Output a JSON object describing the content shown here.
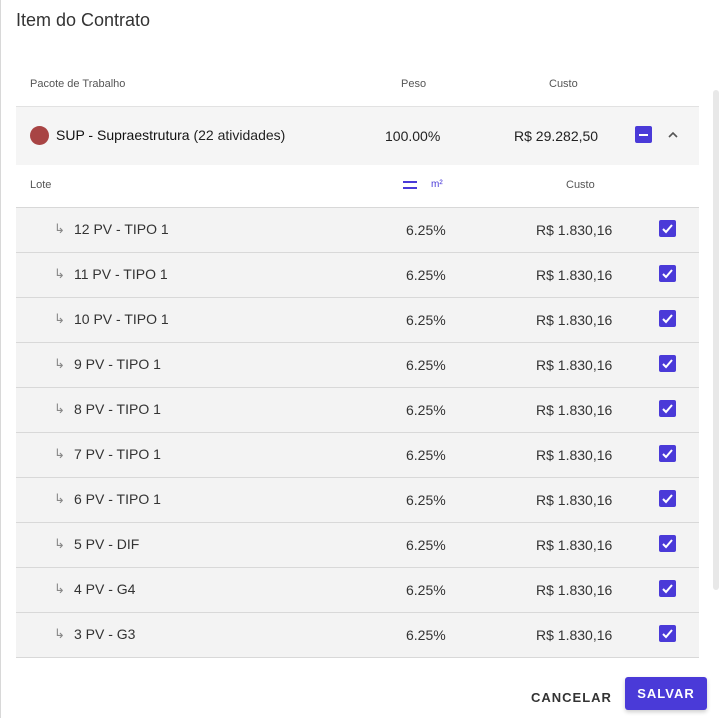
{
  "dialog": {
    "title": "Item do Contrato"
  },
  "header": {
    "col_pacote": "Pacote de Trabalho",
    "col_peso": "Peso",
    "col_custo": "Custo"
  },
  "package": {
    "name": "SUP - Supraestrutura",
    "count": "(22 atividades)",
    "peso": "100.00%",
    "custo": "R$ 29.282,50",
    "color": "#a84444"
  },
  "subheader": {
    "col_lote": "Lote",
    "unit": "m²",
    "col_custo": "Custo"
  },
  "rows": [
    {
      "label": "12 PV - TIPO 1",
      "pct": "6.25%",
      "value": "R$ 1.830,16",
      "checked": true
    },
    {
      "label": "11 PV - TIPO 1",
      "pct": "6.25%",
      "value": "R$ 1.830,16",
      "checked": true
    },
    {
      "label": "10 PV - TIPO 1",
      "pct": "6.25%",
      "value": "R$ 1.830,16",
      "checked": true
    },
    {
      "label": "9 PV - TIPO 1",
      "pct": "6.25%",
      "value": "R$ 1.830,16",
      "checked": true
    },
    {
      "label": "8 PV - TIPO 1",
      "pct": "6.25%",
      "value": "R$ 1.830,16",
      "checked": true
    },
    {
      "label": "7 PV - TIPO 1",
      "pct": "6.25%",
      "value": "R$ 1.830,16",
      "checked": true
    },
    {
      "label": "6 PV - TIPO 1",
      "pct": "6.25%",
      "value": "R$ 1.830,16",
      "checked": true
    },
    {
      "label": "5 PV - DIF",
      "pct": "6.25%",
      "value": "R$ 1.830,16",
      "checked": true
    },
    {
      "label": "4 PV - G4",
      "pct": "6.25%",
      "value": "R$ 1.830,16",
      "checked": true
    },
    {
      "label": "3 PV - G3",
      "pct": "6.25%",
      "value": "R$ 1.830,16",
      "checked": true
    }
  ],
  "footer": {
    "cancel_label": "CANCELAR",
    "save_label": "SALVAR"
  },
  "colors": {
    "accent": "#4a3ad8"
  }
}
